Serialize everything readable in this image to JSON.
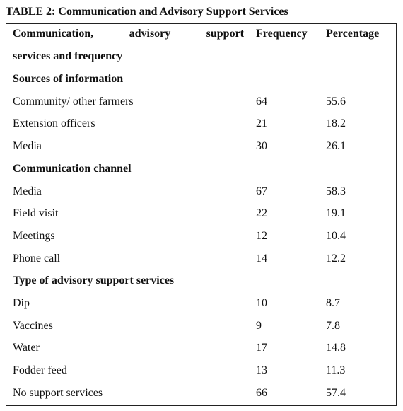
{
  "title": "TABLE 2: Communication and Advisory Support Services",
  "header": {
    "first_column": [
      "Communication, advisory support",
      "services and frequency"
    ],
    "frequency": "Frequency",
    "percentage": "Percentage"
  },
  "sections": [
    {
      "title": "Sources of information",
      "rows": [
        {
          "label": "Community/ other farmers",
          "frequency": 64,
          "percentage": 55.6
        },
        {
          "label": "Extension officers",
          "frequency": 21,
          "percentage": 18.2
        },
        {
          "label": "Media",
          "frequency": 30,
          "percentage": 26.1
        }
      ]
    },
    {
      "title": "Communication channel",
      "rows": [
        {
          "label": "Media",
          "frequency": 67,
          "percentage": 58.3
        },
        {
          "label": "Field visit",
          "frequency": 22,
          "percentage": 19.1
        },
        {
          "label": "Meetings",
          "frequency": 12,
          "percentage": 10.4
        },
        {
          "label": "Phone call",
          "frequency": 14,
          "percentage": 12.2
        }
      ]
    },
    {
      "title": "Type of  advisory support services",
      "rows": [
        {
          "label": "Dip",
          "frequency": 10,
          "percentage": 8.7
        },
        {
          "label": "Vaccines",
          "frequency": 9,
          "percentage": 7.8
        },
        {
          "label": "Water",
          "frequency": 17,
          "percentage": 14.8
        },
        {
          "label": "Fodder feed",
          "frequency": 13,
          "percentage": 11.3
        },
        {
          "label": "No support services",
          "frequency": 66,
          "percentage": 57.4
        }
      ]
    }
  ]
}
